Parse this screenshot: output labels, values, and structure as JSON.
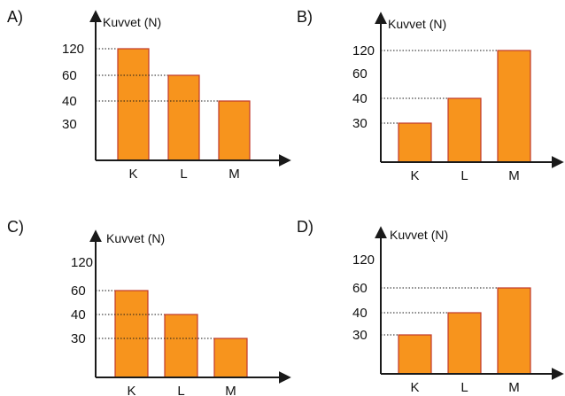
{
  "colors": {
    "bar_fill": "#F7941D",
    "bar_stroke": "#C0392B",
    "axis": "#1a1a1a",
    "dotted_line": "#1a1a1a"
  },
  "chart_data": [
    {
      "option_label": "A)",
      "type": "bar",
      "ylabel": "Kuvvet (N)",
      "y_ticks": [
        "120",
        "60",
        "40",
        "30"
      ],
      "categories": [
        "K",
        "L",
        "M"
      ],
      "values": [
        120,
        60,
        40
      ]
    },
    {
      "option_label": "B)",
      "type": "bar",
      "ylabel": "Kuvvet (N)",
      "y_ticks": [
        "120",
        "60",
        "40",
        "30"
      ],
      "categories": [
        "K",
        "L",
        "M"
      ],
      "values": [
        30,
        40,
        120
      ]
    },
    {
      "option_label": "C)",
      "type": "bar",
      "ylabel": "Kuvvet (N)",
      "y_ticks": [
        "120",
        "60",
        "40",
        "30"
      ],
      "categories": [
        "K",
        "L",
        "M"
      ],
      "values": [
        60,
        40,
        30
      ]
    },
    {
      "option_label": "D)",
      "type": "bar",
      "ylabel": "Kuvvet (N)",
      "y_ticks": [
        "120",
        "60",
        "40",
        "30"
      ],
      "categories": [
        "K",
        "L",
        "M"
      ],
      "values": [
        30,
        40,
        60
      ]
    }
  ]
}
